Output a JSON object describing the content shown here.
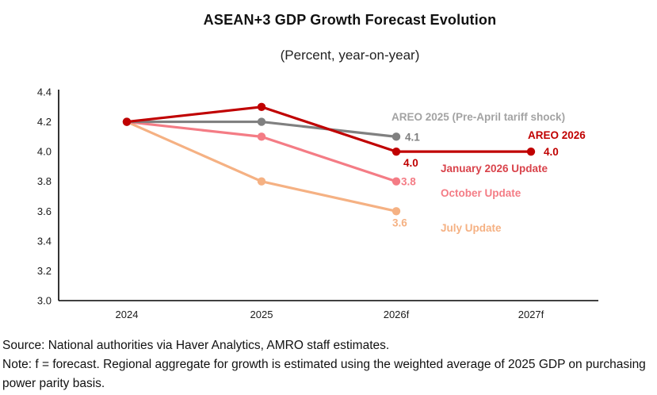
{
  "title": "ASEAN+3 GDP Growth Forecast Evolution",
  "subtitle": "(Percent, year-on-year)",
  "chart_data": {
    "type": "line",
    "categories": [
      "2024",
      "2025",
      "2026f",
      "2027f"
    ],
    "ylim": [
      3.0,
      4.4
    ],
    "yticks": [
      "4.4",
      "4.2",
      "4.0",
      "3.8",
      "3.6",
      "3.4",
      "3.2",
      "3.0"
    ],
    "grid": false,
    "legend_position": "inline-annotations",
    "series": [
      {
        "name": "July Update",
        "color": "#F5B183",
        "values": [
          4.2,
          3.8,
          3.6,
          null
        ],
        "point_labels": [
          {
            "index": 2,
            "text": "3.6"
          }
        ]
      },
      {
        "name": "October Update",
        "color": "#F47C85",
        "values": [
          4.2,
          4.1,
          3.8,
          null
        ],
        "point_labels": [
          {
            "index": 2,
            "text": "3.8"
          }
        ]
      },
      {
        "name": "AREO 2025 (Pre-April tariff shock)",
        "color": "#808080",
        "label_color": "#7F7F7F",
        "values": [
          4.2,
          4.2,
          4.1,
          null
        ],
        "point_labels": [
          {
            "index": 2,
            "text": "4.1"
          }
        ]
      },
      {
        "name": "AREO 2026",
        "color": "#C00000",
        "values": [
          4.2,
          4.3,
          4.0,
          4.0
        ],
        "point_labels": [
          {
            "index": 2,
            "text": "4.0"
          },
          {
            "index": 3,
            "text": "4.0"
          }
        ]
      }
    ],
    "annotations": [
      {
        "id": "areo-2025",
        "text": "AREO 2025 (Pre-April tariff shock)",
        "color": "#A3A3A3"
      },
      {
        "id": "areo-2026",
        "text": "AREO 2026",
        "color": "#C00000"
      },
      {
        "id": "january-2026-update",
        "text": "January 2026 Update",
        "color": "#D9434B"
      },
      {
        "id": "october-update",
        "text": "October Update",
        "color": "#F47C85"
      },
      {
        "id": "july-update",
        "text": "July Update",
        "color": "#F5B183"
      }
    ],
    "axis_color": "#000000"
  },
  "footer": {
    "source": "Source: National authorities via Haver Analytics, AMRO staff estimates.",
    "note": "Note: f = forecast. Regional aggregate for growth is estimated using the weighted average of 2025 GDP on purchasing power parity basis."
  }
}
